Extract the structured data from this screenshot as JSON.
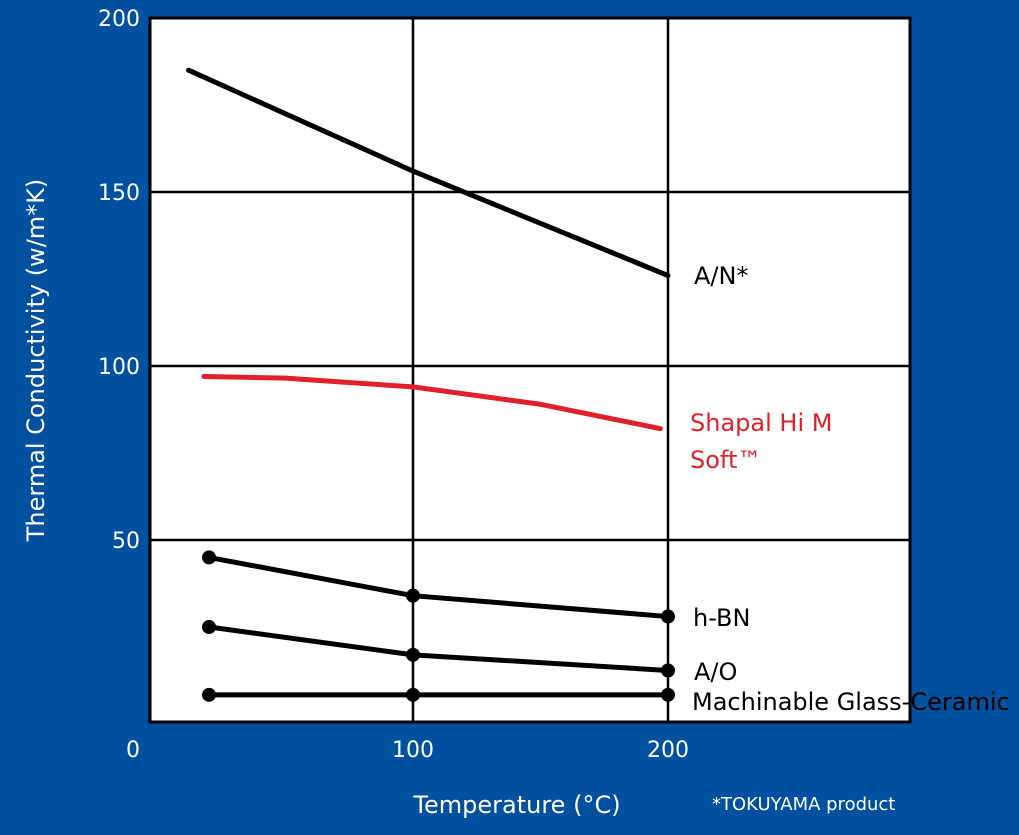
{
  "chart_data": {
    "type": "line",
    "title": "",
    "xlabel": "Temperature (°C)",
    "ylabel": "Thermal Conductivity (w/m*K)",
    "xlim": [
      0,
      300
    ],
    "ylim": [
      0,
      200
    ],
    "x_ticks": [
      "0",
      "100",
      "200"
    ],
    "y_ticks": [
      "50",
      "100",
      "150",
      "200"
    ],
    "grid": true,
    "series": [
      {
        "name": "A/N*",
        "color": "#000000",
        "markers": false,
        "points": [
          [
            12,
            185
          ],
          [
            100,
            156
          ],
          [
            200,
            126
          ]
        ]
      },
      {
        "name": "Shapal Hi M Soft™",
        "color": "#e0202a",
        "markers": false,
        "points": [
          [
            18,
            97
          ],
          [
            50,
            96.5
          ],
          [
            100,
            94
          ],
          [
            150,
            89
          ],
          [
            197,
            82
          ]
        ]
      },
      {
        "name": "h-BN",
        "color": "#000000",
        "markers": true,
        "points": [
          [
            20,
            45
          ],
          [
            100,
            34
          ],
          [
            200,
            28
          ]
        ]
      },
      {
        "name": "A/O",
        "color": "#000000",
        "markers": true,
        "points": [
          [
            20,
            25
          ],
          [
            100,
            17
          ],
          [
            200,
            12.5
          ]
        ]
      },
      {
        "name": "Machinable Glass-Ceramic",
        "color": "#000000",
        "markers": true,
        "points": [
          [
            20,
            5.5
          ],
          [
            100,
            5.5
          ],
          [
            200,
            5.5
          ]
        ]
      }
    ],
    "footnote": "*TOKUYAMA product"
  },
  "colors": {
    "background": "#0050a0",
    "plot": "#ffffff",
    "shapal": "#e0202a"
  }
}
